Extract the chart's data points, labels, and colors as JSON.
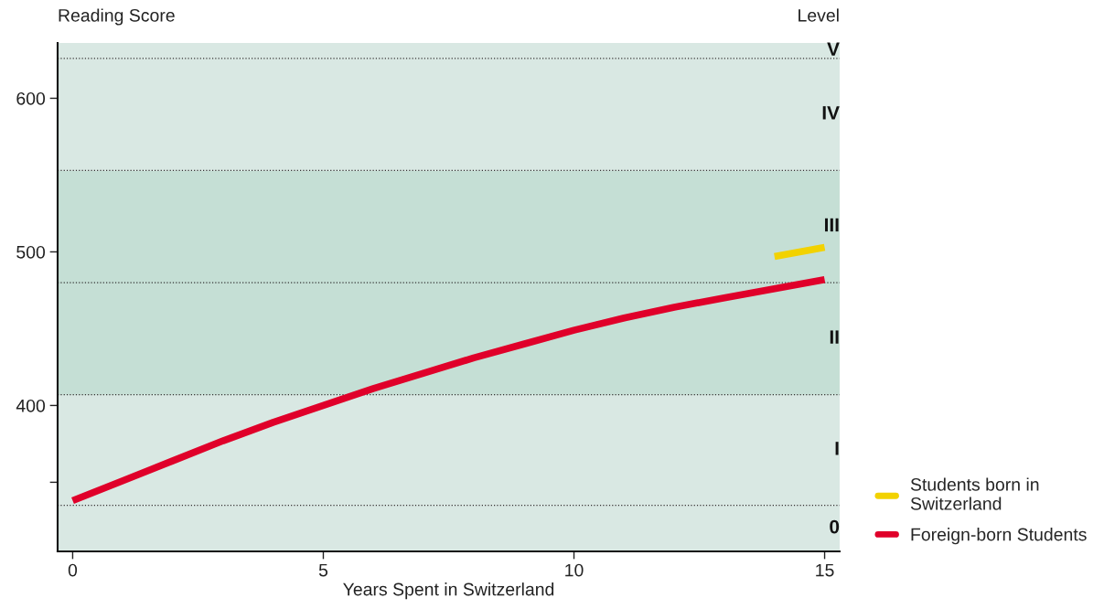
{
  "chart_data": {
    "type": "line",
    "xlabel": "Years Spent in Switzerland",
    "ylabel": "Reading Score",
    "y2label": "Level",
    "xlim": [
      -0.3,
      15.3
    ],
    "xticks": [
      0,
      5,
      10,
      15
    ],
    "ylim": [
      305,
      636
    ],
    "yticks": [
      {
        "value": 350,
        "label": null
      },
      400,
      500,
      600
    ],
    "grid": false,
    "legend": "bottom right",
    "line_style": "solid",
    "marker": "none",
    "series": [
      {
        "name": "Students born in Switzerland",
        "color": "#f2d200",
        "x": [
          14,
          15
        ],
        "values": [
          497,
          503
        ]
      },
      {
        "name": "Foreign-born Students",
        "color": "#e0002a",
        "x": [
          0,
          1,
          2,
          3,
          4,
          5,
          6,
          7,
          8,
          9,
          10,
          11,
          12,
          13,
          14,
          15
        ],
        "values": [
          338,
          351,
          364,
          377,
          389,
          400,
          411,
          421,
          431,
          440,
          449,
          457,
          464,
          470,
          476,
          482
        ]
      }
    ],
    "bands": [
      {
        "axis": "y",
        "from": 305,
        "to": 335,
        "label": "0",
        "color": "#d9e8e3"
      },
      {
        "axis": "y",
        "from": 335,
        "to": 407,
        "label": "I",
        "color": "#d9e8e3"
      },
      {
        "axis": "y",
        "from": 407,
        "to": 480,
        "label": "II",
        "color": "#c5dfd5"
      },
      {
        "axis": "y",
        "from": 480,
        "to": 553,
        "label": "III",
        "color": "#c5dfd5"
      },
      {
        "axis": "y",
        "from": 553,
        "to": 626,
        "label": "IV",
        "color": "#d9e8e3"
      },
      {
        "axis": "y",
        "from": 626,
        "to": 636,
        "label": "V",
        "color": "#d9e8e3"
      }
    ],
    "ref_lines": [
      {
        "axis": "y",
        "value": 335,
        "line_style": "dotted"
      },
      {
        "axis": "y",
        "value": 407,
        "line_style": "dotted"
      },
      {
        "axis": "y",
        "value": 480,
        "line_style": "dotted"
      },
      {
        "axis": "y",
        "value": 553,
        "line_style": "dotted"
      },
      {
        "axis": "y",
        "value": 626,
        "line_style": "dotted"
      }
    ]
  }
}
